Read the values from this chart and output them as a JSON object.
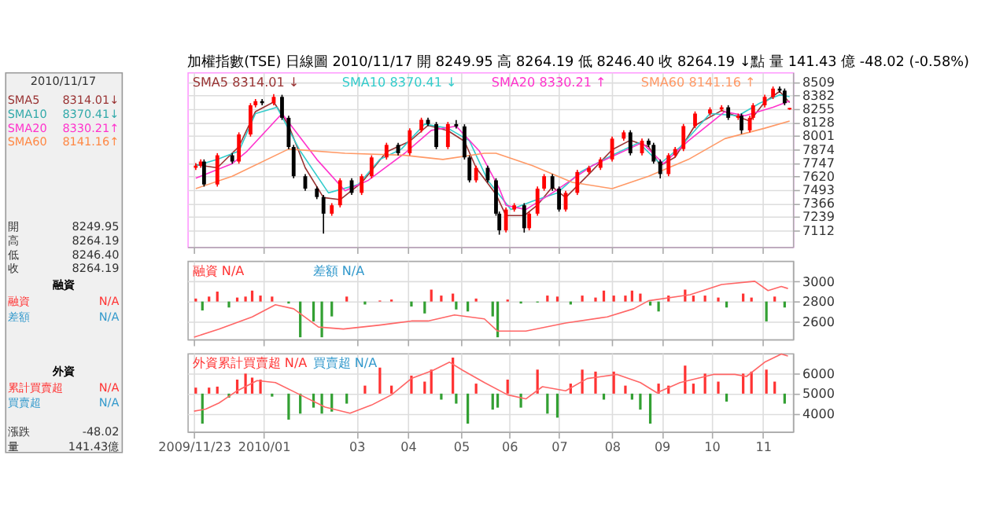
{
  "chart_data": [
    {
      "type": "other",
      "annotations": [
        "2010/11/17",
        "SMA5",
        "8314.01↓",
        "SMA10",
        "8370.41↓",
        "SMA20",
        "8330.21↑",
        "SMA60",
        "8141.16↑",
        "開",
        "8249.95",
        "高",
        "8264.19",
        "低",
        "8246.40",
        "收",
        "8264.19",
        "融資",
        "融資",
        "N/A",
        "差額",
        "N/A",
        "外資",
        "累計買賣超",
        "N/A",
        "買賣超",
        "N/A",
        "漲跌",
        "-48.02",
        "量",
        "141.43億"
      ]
    },
    {
      "type": "candlestick",
      "title": "加權指數(TSE)  日線圖  2010/11/17  開 8249.95  高 8264.19  低 8246.40  收 8264.19 ↓點  量 141.43 億  -48.02 (-0.58%)",
      "legend": "top left",
      "grid": true,
      "tick_labels": "y",
      "xlim": [
        "2009-11-19",
        "2010-11-19"
      ],
      "xticks": [
        {
          "value": "2009-11-23",
          "label": null
        },
        {
          "value": "2010-01-04",
          "label": null
        },
        {
          "value": "2010-03-01",
          "label": null
        },
        {
          "value": "2010-04-01",
          "label": null
        },
        {
          "value": "2010-05-03",
          "label": null
        },
        {
          "value": "2010-06-01",
          "label": null
        },
        {
          "value": "2010-07-01",
          "label": null
        },
        {
          "value": "2010-08-02",
          "label": null
        },
        {
          "value": "2010-09-01",
          "label": null
        },
        {
          "value": "2010-10-01",
          "label": null
        },
        {
          "value": "2010-11-01",
          "label": null
        }
      ],
      "ylim": [
        6955,
        8600
      ],
      "yticks": [
        7112,
        7239,
        7366,
        7493,
        7620,
        7747,
        7874,
        8001,
        8128,
        8255,
        8382,
        8509
      ],
      "series": [
        {
          "type": "candlestick",
          "x": [
            "2009-11-24",
            "2009-11-27",
            "2009-11-29",
            "2009-12-07",
            "2009-12-16",
            "2009-12-20",
            "2009-12-27",
            "2009-12-30",
            "2010-01-03",
            "2010-01-10",
            "2010-01-15",
            "2010-01-19",
            "2010-01-22",
            "2010-01-29",
            "2010-02-05",
            "2010-02-09",
            "2010-02-14",
            "2010-02-19",
            "2010-02-26",
            "2010-03-04",
            "2010-03-10",
            "2010-03-19",
            "2010-03-26",
            "2010-04-02",
            "2010-04-09",
            "2010-04-13",
            "2010-04-18",
            "2010-04-25",
            "2010-04-30",
            "2010-05-05",
            "2010-05-08",
            "2010-05-12",
            "2010-05-19",
            "2010-05-24",
            "2010-05-26",
            "2010-05-30",
            "2010-06-04",
            "2010-06-10",
            "2010-06-13",
            "2010-06-18",
            "2010-06-22",
            "2010-06-27",
            "2010-07-01",
            "2010-07-05",
            "2010-07-12",
            "2010-07-19",
            "2010-07-26",
            "2010-08-02",
            "2010-08-09",
            "2010-08-13",
            "2010-08-20",
            "2010-08-24",
            "2010-08-27",
            "2010-08-31",
            "2010-09-05",
            "2010-09-09",
            "2010-09-14",
            "2010-09-21",
            "2010-09-30",
            "2010-10-07",
            "2010-10-11",
            "2010-10-17",
            "2010-10-19",
            "2010-10-24",
            "2010-10-26",
            "2010-11-02",
            "2010-11-07",
            "2010-11-11",
            "2010-11-14",
            "2010-11-17"
          ],
          "ohlc": [
            [
              7700,
              7745,
              7680,
              7720
            ],
            [
              7720,
              7780,
              7700,
              7759
            ],
            [
              7759,
              7779,
              7523,
              7543
            ],
            [
              7543,
              7838,
              7523,
              7818
            ],
            [
              7818,
              7838,
              7739,
              7759
            ],
            [
              7759,
              8034,
              7739,
              8014
            ],
            [
              8014,
              8309,
              7994,
              8289
            ],
            [
              8289,
              8348,
              8269,
              8328
            ],
            [
              8328,
              8348,
              8289,
              8309
            ],
            [
              8309,
              8395,
              8289,
              8368
            ],
            [
              8368,
              8388,
              8151,
              8171
            ],
            [
              8171,
              8191,
              7876,
              7896
            ],
            [
              7896,
              7916,
              7601,
              7621
            ],
            [
              7621,
              7641,
              7484,
              7504
            ],
            [
              7504,
              7524,
              7405,
              7425
            ],
            [
              7425,
              7445,
              7080,
              7268
            ],
            [
              7268,
              7367,
              7248,
              7347
            ],
            [
              7347,
              7602,
              7327,
              7582
            ],
            [
              7582,
              7602,
              7444,
              7464
            ],
            [
              7464,
              7641,
              7444,
              7621
            ],
            [
              7621,
              7818,
              7601,
              7798
            ],
            [
              7798,
              7936,
              7778,
              7916
            ],
            [
              7916,
              7936,
              7817,
              7837
            ],
            [
              7837,
              8073,
              7817,
              8053
            ],
            [
              8053,
              8172,
              8033,
              8152
            ],
            [
              8152,
              8172,
              8092,
              8112
            ],
            [
              8112,
              8132,
              7876,
              7896
            ],
            [
              7896,
              8132,
              7876,
              8112
            ],
            [
              8112,
              8150,
              8070,
              8090
            ],
            [
              8090,
              8110,
              7778,
              7798
            ],
            [
              7798,
              7818,
              7562,
              7582
            ],
            [
              7582,
              7720,
              7562,
              7700
            ],
            [
              7700,
              7720,
              7562,
              7582
            ],
            [
              7582,
              7602,
              7248,
              7268
            ],
            [
              7268,
              7288,
              7070,
              7111
            ],
            [
              7111,
              7327,
              7091,
              7307
            ],
            [
              7307,
              7367,
              7287,
              7347
            ],
            [
              7347,
              7367,
              7090,
              7131
            ],
            [
              7131,
              7288,
              7111,
              7268
            ],
            [
              7268,
              7524,
              7248,
              7504
            ],
            [
              7504,
              7641,
              7484,
              7621
            ],
            [
              7621,
              7641,
              7484,
              7504
            ],
            [
              7504,
              7524,
              7287,
              7307
            ],
            [
              7307,
              7484,
              7287,
              7464
            ],
            [
              7464,
              7681,
              7444,
              7661
            ],
            [
              7661,
              7720,
              7641,
              7700
            ],
            [
              7700,
              7799,
              7680,
              7779
            ],
            [
              7779,
              7995,
              7759,
              7975
            ],
            [
              7975,
              8054,
              7955,
              8034
            ],
            [
              8034,
              8054,
              7817,
              7837
            ],
            [
              7837,
              7975,
              7817,
              7955
            ],
            [
              7955,
              7975,
              7896,
              7916
            ],
            [
              7916,
              7936,
              7739,
              7759
            ],
            [
              7759,
              7779,
              7600,
              7641
            ],
            [
              7641,
              7838,
              7621,
              7818
            ],
            [
              7818,
              7897,
              7798,
              7877
            ],
            [
              7877,
              8113,
              7857,
              8093
            ],
            [
              8093,
              8231,
              8073,
              8211
            ],
            [
              8211,
              8270,
              8191,
              8250
            ],
            [
              8250,
              8290,
              8230,
              8270
            ],
            [
              8270,
              8290,
              8151,
              8171
            ],
            [
              8171,
              8211,
              8151,
              8191
            ],
            [
              8191,
              8211,
              8020,
              8053
            ],
            [
              8053,
              8191,
              8033,
              8171
            ],
            [
              8171,
              8309,
              8151,
              8289
            ],
            [
              8289,
              8388,
              8269,
              8368
            ],
            [
              8368,
              8466,
              8348,
              8446
            ],
            [
              8446,
              8466,
              8407,
              8427
            ],
            [
              8427,
              8447,
              8289,
              8309
            ],
            [
              8249.95,
              8264.19,
              8246.4,
              8264.19
            ]
          ],
          "colors": [
            "#ff0000",
            "#ff0000",
            "#000000",
            "#ff0000",
            "#000000",
            "#ff0000",
            "#ff0000",
            "#ff0000",
            "#000000",
            "#ff0000",
            "#000000",
            "#000000",
            "#000000",
            "#000000",
            "#000000",
            "#000000",
            "#ff0000",
            "#ff0000",
            "#000000",
            "#ff0000",
            "#ff0000",
            "#ff0000",
            "#000000",
            "#ff0000",
            "#ff0000",
            "#000000",
            "#000000",
            "#ff0000",
            "#000000",
            "#000000",
            "#000000",
            "#ff0000",
            "#000000",
            "#000000",
            "#000000",
            "#ff0000",
            "#ff0000",
            "#000000",
            "#ff0000",
            "#ff0000",
            "#ff0000",
            "#000000",
            "#000000",
            "#ff0000",
            "#ff0000",
            "#ff0000",
            "#ff0000",
            "#ff0000",
            "#ff0000",
            "#000000",
            "#ff0000",
            "#000000",
            "#000000",
            "#000000",
            "#ff0000",
            "#ff0000",
            "#ff0000",
            "#ff0000",
            "#ff0000",
            "#ff0000",
            "#000000",
            "#ff0000",
            "#000000",
            "#ff0000",
            "#ff0000",
            "#ff0000",
            "#ff0000",
            "#000000",
            "#000000",
            "#ff0000"
          ]
        },
        {
          "type": "line",
          "name": "SMA5 8314.01 ↓",
          "color": "#993333",
          "x": [
            "2009-11-24",
            "2009-12-07",
            "2009-12-20",
            "2009-12-30",
            "2010-01-10",
            "2010-01-19",
            "2010-01-29",
            "2010-02-09",
            "2010-02-19",
            "2010-03-04",
            "2010-03-19",
            "2010-04-02",
            "2010-04-13",
            "2010-04-25",
            "2010-05-05",
            "2010-05-12",
            "2010-05-24",
            "2010-05-30",
            "2010-06-10",
            "2010-06-18",
            "2010-06-27",
            "2010-07-05",
            "2010-07-19",
            "2010-08-02",
            "2010-08-13",
            "2010-08-24",
            "2010-08-31",
            "2010-09-09",
            "2010-09-21",
            "2010-10-07",
            "2010-10-17",
            "2010-10-24",
            "2010-11-02",
            "2010-11-11",
            "2010-11-17"
          ],
          "values": [
            7730,
            7700,
            7900,
            8230,
            8320,
            8100,
            7700,
            7420,
            7400,
            7560,
            7850,
            7950,
            8100,
            8050,
            7950,
            7700,
            7450,
            7250,
            7250,
            7350,
            7520,
            7420,
            7640,
            7870,
            7960,
            7900,
            7720,
            7800,
            8100,
            8240,
            8180,
            8140,
            8320,
            8420,
            8314
          ]
        },
        {
          "type": "line",
          "name": "SMA10 8370.41 ↓",
          "color": "#33cccc",
          "x": [
            "2009-11-24",
            "2009-12-07",
            "2009-12-20",
            "2009-12-30",
            "2010-01-12",
            "2010-01-26",
            "2010-02-12",
            "2010-03-02",
            "2010-03-15",
            "2010-03-28",
            "2010-04-11",
            "2010-04-25",
            "2010-05-08",
            "2010-05-19",
            "2010-06-02",
            "2010-06-15",
            "2010-06-30",
            "2010-07-14",
            "2010-08-02",
            "2010-08-18",
            "2010-08-31",
            "2010-09-12",
            "2010-09-30",
            "2010-10-17",
            "2010-10-30",
            "2010-11-11",
            "2010-11-17"
          ],
          "values": [
            7720,
            7779,
            7857,
            8211,
            8270,
            7857,
            7464,
            7543,
            7779,
            7877,
            8112,
            8073,
            7955,
            7582,
            7307,
            7386,
            7464,
            7661,
            7818,
            7936,
            7739,
            7896,
            8211,
            8191,
            8309,
            8387,
            8370
          ]
        },
        {
          "type": "line",
          "name": "SMA20 8330.21 ↑",
          "color": "#ff33cc",
          "x": [
            "2009-11-24",
            "2009-12-16",
            "2009-12-25",
            "2010-01-15",
            "2010-02-05",
            "2010-02-22",
            "2010-03-08",
            "2010-03-30",
            "2010-04-15",
            "2010-04-30",
            "2010-05-14",
            "2010-05-26",
            "2010-05-30",
            "2010-06-11",
            "2010-06-27",
            "2010-07-21",
            "2010-08-20",
            "2010-09-02",
            "2010-09-17",
            "2010-10-09",
            "2010-10-21",
            "2010-11-07",
            "2010-11-17"
          ],
          "values": [
            7602,
            7739,
            7857,
            8211,
            7779,
            7484,
            7582,
            7837,
            8053,
            8093,
            7857,
            7504,
            7347,
            7307,
            7464,
            7720,
            7936,
            7739,
            7955,
            8230,
            8191,
            8270,
            8330
          ]
        },
        {
          "type": "line",
          "name": "SMA60 8141.16 ↑",
          "color": "#ff9966",
          "x": [
            "2009-11-24",
            "2009-12-16",
            "2010-01-19",
            "2010-02-22",
            "2010-03-30",
            "2010-04-22",
            "2010-05-17",
            "2010-05-24",
            "2010-06-15",
            "2010-07-09",
            "2010-08-02",
            "2010-08-24",
            "2010-09-17",
            "2010-10-09",
            "2010-11-02",
            "2010-11-17"
          ],
          "values": [
            7504,
            7621,
            7877,
            7837,
            7818,
            7779,
            7837,
            7837,
            7720,
            7563,
            7504,
            7621,
            7779,
            7975,
            8073,
            8141
          ]
        }
      ]
    },
    {
      "type": "bar",
      "grid": true,
      "tick_labels": "y",
      "annotations": [
        "融資 N/A",
        "差額 N/A"
      ],
      "xlim": [
        "2009-11-19",
        "2010-11-19"
      ],
      "xticks": [
        {
          "value": "2009-11-23",
          "label": null
        },
        {
          "value": "2010-01-04",
          "label": null
        },
        {
          "value": "2010-03-01",
          "label": null
        },
        {
          "value": "2010-04-01",
          "label": null
        },
        {
          "value": "2010-05-03",
          "label": null
        },
        {
          "value": "2010-06-01",
          "label": null
        },
        {
          "value": "2010-07-01",
          "label": null
        },
        {
          "value": "2010-08-02",
          "label": null
        },
        {
          "value": "2010-09-01",
          "label": null
        },
        {
          "value": "2010-10-01",
          "label": null
        },
        {
          "value": "2010-11-01",
          "label": null
        }
      ],
      "ylim": [
        2420,
        3210
      ],
      "yticks": [
        2600,
        2800,
        3000
      ],
      "series": [
        {
          "type": "bar",
          "x": [
            "2009-11-24",
            "2009-11-28",
            "2009-12-02",
            "2009-12-07",
            "2009-12-14",
            "2009-12-19",
            "2009-12-24",
            "2009-12-28",
            "2010-01-02",
            "2010-01-09",
            "2010-01-19",
            "2010-01-26",
            "2010-02-03",
            "2010-02-08",
            "2010-02-14",
            "2010-02-23",
            "2010-03-06",
            "2010-03-15",
            "2010-03-22",
            "2010-04-03",
            "2010-04-11",
            "2010-04-15",
            "2010-04-21",
            "2010-04-28",
            "2010-04-30",
            "2010-05-07",
            "2010-05-12",
            "2010-05-22",
            "2010-05-25",
            "2010-05-31",
            "2010-06-08",
            "2010-06-18",
            "2010-06-24",
            "2010-06-30",
            "2010-07-08",
            "2010-07-15",
            "2010-07-23",
            "2010-07-28",
            "2010-08-03",
            "2010-08-10",
            "2010-08-14",
            "2010-08-19",
            "2010-08-25",
            "2010-08-30",
            "2010-09-05",
            "2010-09-15",
            "2010-09-20",
            "2010-09-27",
            "2010-10-05",
            "2010-10-10",
            "2010-10-20",
            "2010-10-25",
            "2010-11-03",
            "2010-11-08",
            "2010-11-14"
          ],
          "base": [
            2800,
            2800,
            2800,
            2800,
            2800,
            2800,
            2800,
            2800,
            2800,
            2800,
            2800,
            2800,
            2800,
            2800,
            2800,
            2800,
            2800,
            2800,
            2800,
            2800,
            2800,
            2800,
            2800,
            2800,
            2800,
            2800,
            2800,
            2800,
            2800,
            2800,
            2800,
            2800,
            2800,
            2800,
            2800,
            2800,
            2800,
            2800,
            2800,
            2800,
            2800,
            2800,
            2800,
            2800,
            2800,
            2800,
            2800,
            2800,
            2800,
            2800,
            2800,
            2800,
            2800,
            2800,
            2800
          ],
          "values": [
            30,
            -90,
            50,
            100,
            -60,
            40,
            50,
            110,
            60,
            50,
            -20,
            -360,
            -200,
            -360,
            -150,
            50,
            -30,
            10,
            20,
            -50,
            -120,
            120,
            60,
            80,
            -80,
            -100,
            30,
            -150,
            -360,
            20,
            -20,
            -10,
            60,
            50,
            -30,
            60,
            40,
            110,
            60,
            60,
            110,
            80,
            -40,
            -100,
            60,
            120,
            60,
            60,
            40,
            -60,
            80,
            40,
            -200,
            50,
            -60
          ],
          "colors": [
            "#ff3333",
            "#33a033",
            "#ff3333",
            "#ff3333",
            "#33a033",
            "#ff3333",
            "#ff3333",
            "#ff3333",
            "#ff3333",
            "#ff3333",
            "#33a033",
            "#33a033",
            "#33a033",
            "#33a033",
            "#33a033",
            "#ff3333",
            "#33a033",
            "#ff3333",
            "#ff3333",
            "#33a033",
            "#33a033",
            "#ff3333",
            "#ff3333",
            "#ff3333",
            "#33a033",
            "#33a033",
            "#ff3333",
            "#33a033",
            "#33a033",
            "#ff3333",
            "#33a033",
            "#33a033",
            "#ff3333",
            "#ff3333",
            "#33a033",
            "#ff3333",
            "#ff3333",
            "#ff3333",
            "#ff3333",
            "#ff3333",
            "#ff3333",
            "#ff3333",
            "#33a033",
            "#33a033",
            "#ff3333",
            "#ff3333",
            "#ff3333",
            "#ff3333",
            "#ff3333",
            "#33a033",
            "#ff3333",
            "#ff3333",
            "#33a033",
            "#ff3333",
            "#33a033"
          ]
        },
        {
          "type": "line",
          "color": "#ff6666",
          "x": [
            "2009-11-23",
            "2009-12-08",
            "2009-12-28",
            "2010-01-11",
            "2010-01-22",
            "2010-02-06",
            "2010-02-21",
            "2010-03-15",
            "2010-04-03",
            "2010-04-13",
            "2010-04-29",
            "2010-05-17",
            "2010-05-25",
            "2010-06-11",
            "2010-07-05",
            "2010-07-30",
            "2010-08-15",
            "2010-08-24",
            "2010-09-18",
            "2010-10-07",
            "2010-10-27",
            "2010-11-04",
            "2010-11-12",
            "2010-11-16"
          ],
          "values": [
            2441,
            2523,
            2645,
            2767,
            2727,
            2543,
            2523,
            2563,
            2604,
            2604,
            2665,
            2625,
            2502,
            2502,
            2584,
            2645,
            2727,
            2808,
            2869,
            2971,
            3004,
            2910,
            2951,
            2931
          ]
        }
      ]
    },
    {
      "type": "bar",
      "grid": true,
      "annotations": [
        "外資累計買賣超 N/A",
        "買賣超 N/A"
      ],
      "xlim": [
        "2009-11-19",
        "2010-11-19"
      ],
      "xticks": [
        {
          "value": "2009-11-23",
          "label": "2009/11/23"
        },
        {
          "value": "2010-01-04",
          "label": "2010/01"
        },
        {
          "value": "2010-03-01",
          "label": "03"
        },
        {
          "value": "2010-04-01",
          "label": "04"
        },
        {
          "value": "2010-05-03",
          "label": "05"
        },
        {
          "value": "2010-06-01",
          "label": "06"
        },
        {
          "value": "2010-07-01",
          "label": "07"
        },
        {
          "value": "2010-08-02",
          "label": "08"
        },
        {
          "value": "2010-09-01",
          "label": "09"
        },
        {
          "value": "2010-10-01",
          "label": "10"
        },
        {
          "value": "2010-11-01",
          "label": "11"
        }
      ],
      "ylim": [
        3100,
        7020
      ],
      "yticks": [
        4000,
        5000,
        6000
      ],
      "series": [
        {
          "type": "bar",
          "x": [
            "2009-11-24",
            "2009-11-28",
            "2009-12-02",
            "2009-12-07",
            "2009-12-14",
            "2009-12-19",
            "2009-12-24",
            "2009-12-28",
            "2010-01-02",
            "2010-01-09",
            "2010-01-19",
            "2010-01-26",
            "2010-02-03",
            "2010-02-08",
            "2010-02-14",
            "2010-02-23",
            "2010-03-06",
            "2010-03-15",
            "2010-03-22",
            "2010-04-03",
            "2010-04-11",
            "2010-04-15",
            "2010-04-21",
            "2010-04-28",
            "2010-04-30",
            "2010-05-07",
            "2010-05-12",
            "2010-05-22",
            "2010-05-25",
            "2010-05-31",
            "2010-06-08",
            "2010-06-18",
            "2010-06-24",
            "2010-06-30",
            "2010-07-08",
            "2010-07-15",
            "2010-07-23",
            "2010-07-28",
            "2010-08-03",
            "2010-08-10",
            "2010-08-14",
            "2010-08-19",
            "2010-08-25",
            "2010-08-30",
            "2010-09-05",
            "2010-09-15",
            "2010-09-20",
            "2010-09-27",
            "2010-10-05",
            "2010-10-10",
            "2010-10-20",
            "2010-10-25",
            "2010-11-03",
            "2010-11-08",
            "2010-11-14"
          ],
          "base": [
            5000,
            5000,
            5000,
            5000,
            5000,
            5000,
            5000,
            5000,
            5000,
            5000,
            5000,
            5000,
            5000,
            5000,
            5000,
            5000,
            5000,
            5000,
            5000,
            5000,
            5000,
            5000,
            5000,
            5000,
            5000,
            5000,
            5000,
            5000,
            5000,
            5000,
            5000,
            5000,
            5000,
            5000,
            5000,
            5000,
            5000,
            5000,
            5000,
            5000,
            5000,
            5000,
            5000,
            5000,
            5000,
            5000,
            5000,
            5000,
            5000,
            5000,
            5000,
            5000,
            5000,
            5000,
            5000
          ],
          "values": [
            300,
            -1500,
            300,
            350,
            -200,
            700,
            1000,
            800,
            700,
            -150,
            -1300,
            -1000,
            -700,
            -1000,
            -900,
            -500,
            400,
            1300,
            400,
            900,
            600,
            1200,
            -300,
            1800,
            -500,
            -1500,
            500,
            -800,
            -700,
            700,
            -700,
            1200,
            -1000,
            -1200,
            500,
            1200,
            1100,
            -300,
            1100,
            400,
            -300,
            -800,
            -1500,
            500,
            400,
            1400,
            500,
            1000,
            600,
            -400,
            1000,
            1100,
            1200,
            600,
            -500
          ],
          "colors": [
            "#ff3333",
            "#33a033",
            "#ff3333",
            "#ff3333",
            "#33a033",
            "#ff3333",
            "#ff3333",
            "#ff3333",
            "#ff3333",
            "#33a033",
            "#33a033",
            "#33a033",
            "#33a033",
            "#33a033",
            "#33a033",
            "#33a033",
            "#ff3333",
            "#ff3333",
            "#ff3333",
            "#ff3333",
            "#ff3333",
            "#ff3333",
            "#33a033",
            "#ff3333",
            "#33a033",
            "#33a033",
            "#ff3333",
            "#33a033",
            "#33a033",
            "#ff3333",
            "#33a033",
            "#ff3333",
            "#33a033",
            "#33a033",
            "#ff3333",
            "#ff3333",
            "#ff3333",
            "#33a033",
            "#ff3333",
            "#ff3333",
            "#33a033",
            "#33a033",
            "#33a033",
            "#ff3333",
            "#ff3333",
            "#ff3333",
            "#ff3333",
            "#ff3333",
            "#ff3333",
            "#33a033",
            "#ff3333",
            "#ff3333",
            "#ff3333",
            "#ff3333",
            "#33a033"
          ]
        },
        {
          "type": "line",
          "color": "#ff6666",
          "x": [
            "2009-11-23",
            "2009-11-30",
            "2009-12-08",
            "2009-12-19",
            "2009-12-31",
            "2010-01-11",
            "2010-01-26",
            "2010-02-10",
            "2010-02-25",
            "2010-03-10",
            "2010-03-22",
            "2010-04-03",
            "2010-04-16",
            "2010-04-26",
            "2010-05-04",
            "2010-05-17",
            "2010-05-31",
            "2010-06-11",
            "2010-06-21",
            "2010-07-05",
            "2010-07-18",
            "2010-08-05",
            "2010-08-19",
            "2010-08-29",
            "2010-09-12",
            "2010-10-02",
            "2010-10-15",
            "2010-10-22",
            "2010-11-02",
            "2010-11-12",
            "2010-11-16"
          ],
          "values": [
            4123,
            4225,
            4531,
            5143,
            5653,
            5551,
            4939,
            4327,
            4021,
            4429,
            4939,
            5755,
            6163,
            6571,
            6163,
            5551,
            4939,
            4735,
            5347,
            5143,
            5755,
            5959,
            5551,
            5041,
            5551,
            5959,
            5959,
            5857,
            6571,
            6979,
            6877
          ]
        }
      ]
    }
  ]
}
